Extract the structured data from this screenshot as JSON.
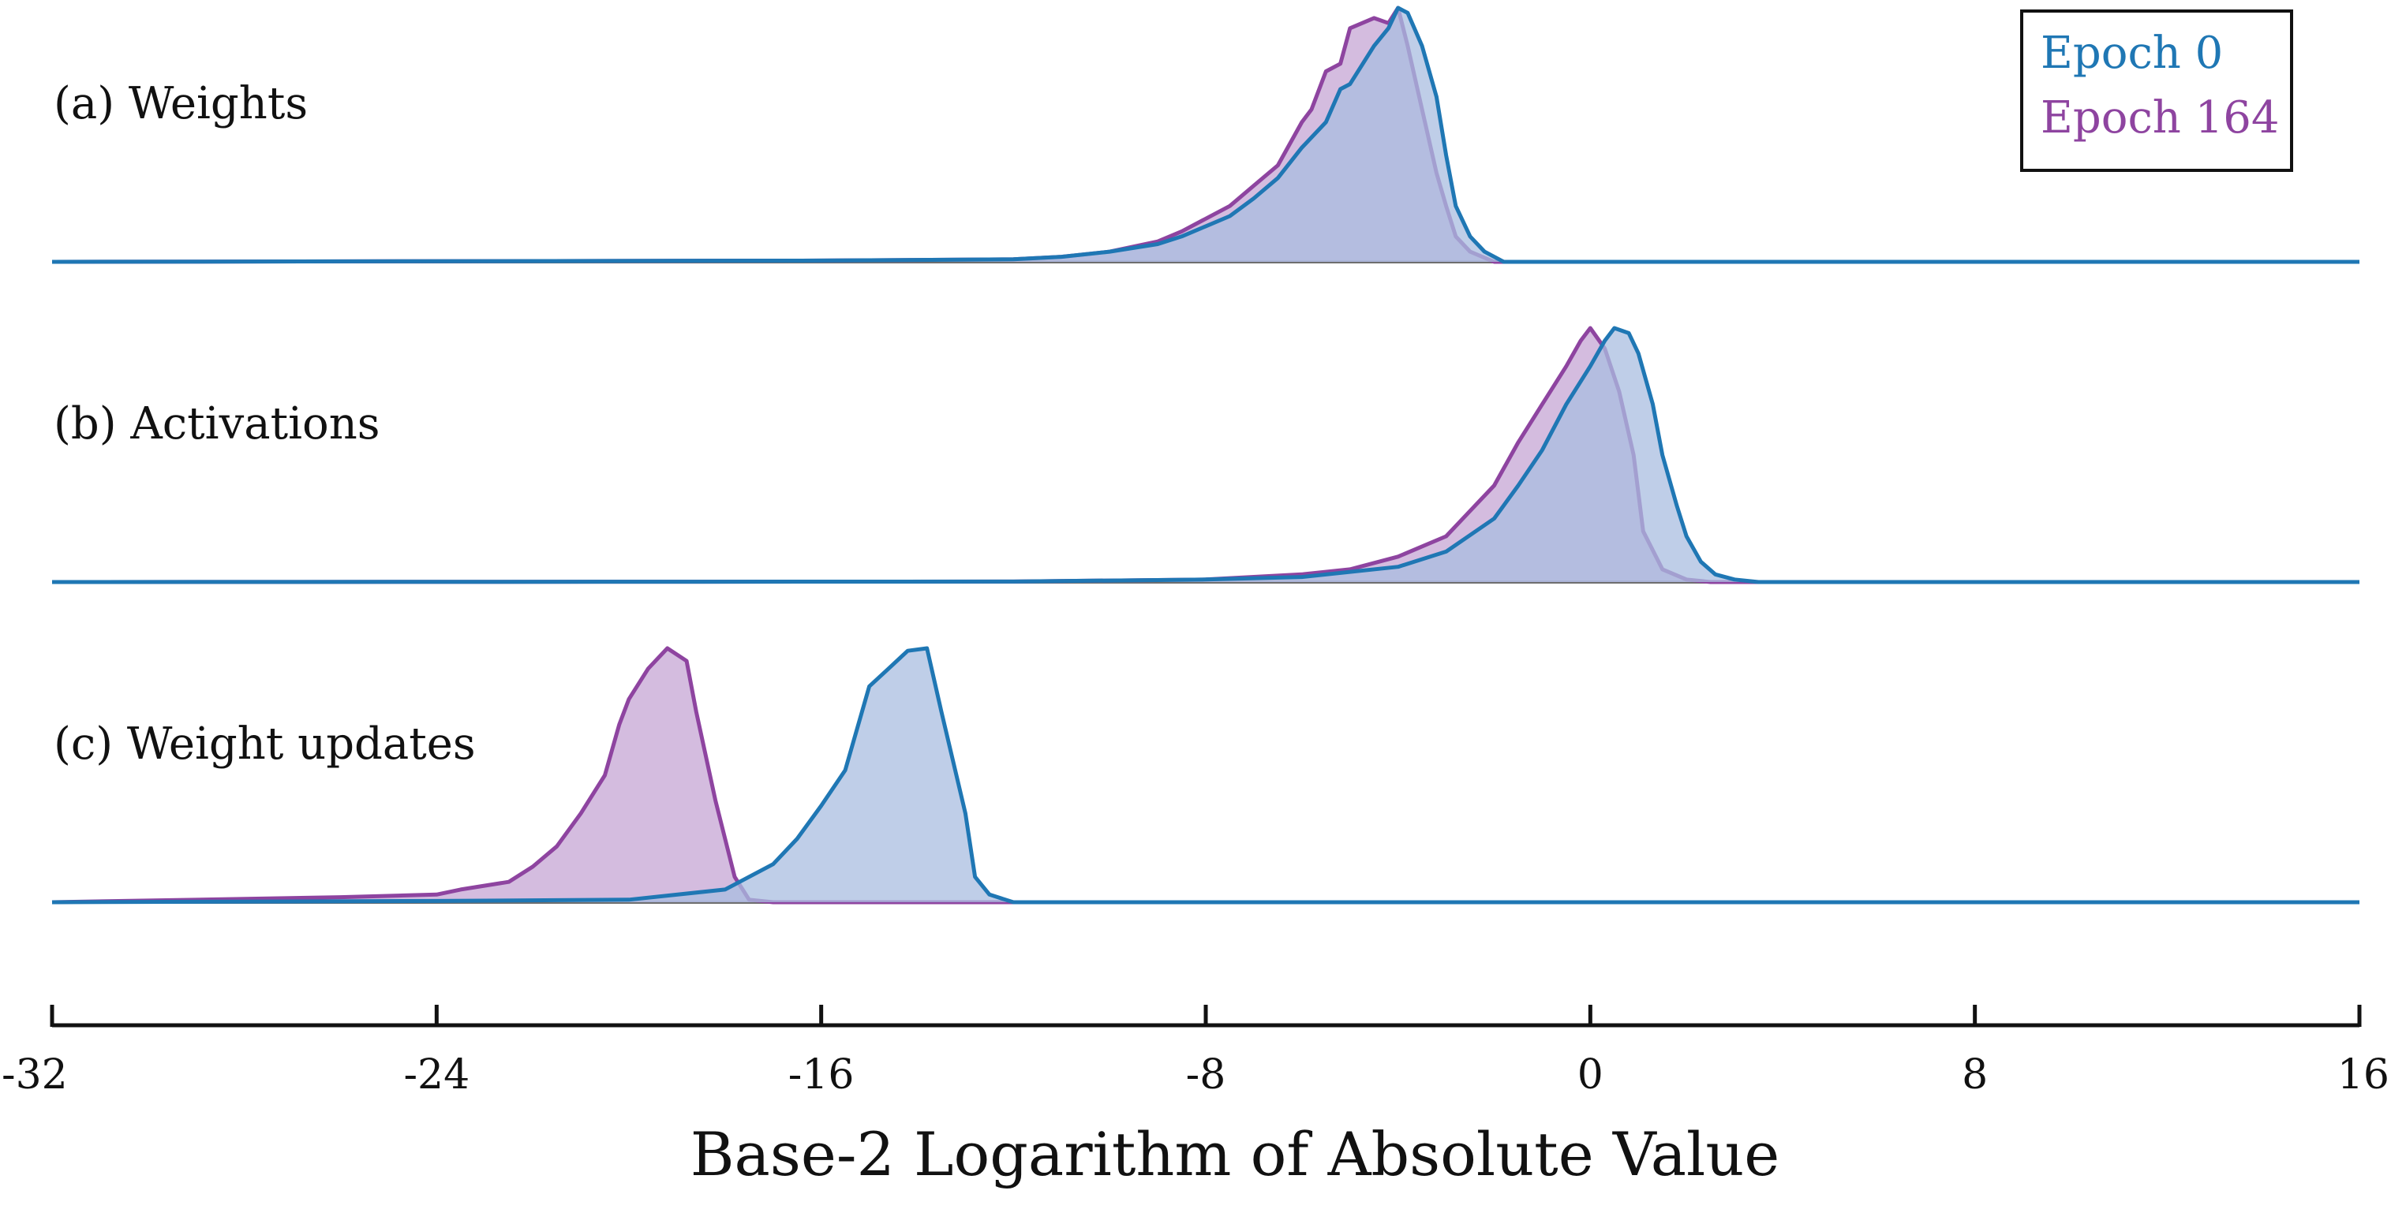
{
  "chart_data": {
    "type": "area",
    "xlabel": "Base-2 Logarithm of Absolute Value",
    "xlim": [
      -32,
      16
    ],
    "xticks": [
      -32,
      -24,
      -16,
      -8,
      0,
      8,
      16
    ],
    "xtick_labels": [
      "-32",
      "-24",
      "-16",
      "-8",
      "0",
      "8",
      "16"
    ],
    "grid": false,
    "legend": {
      "position": "top-right",
      "entries": [
        {
          "name": "Epoch 0",
          "color": "#1f77b4"
        },
        {
          "name": "Epoch 164",
          "color": "#8e44a0"
        }
      ]
    },
    "colors": {
      "epoch0_line": "#1f77b4",
      "epoch0_fill": "#a9bde0",
      "epoch164_line": "#8e44a0",
      "epoch164_fill": "#c6a5d4"
    },
    "panels": [
      {
        "label": "(a) Weights",
        "series": [
          {
            "name": "Epoch 164",
            "x": [
              -32,
              -16,
              -12,
              -11,
              -10,
              -9,
              -8.5,
              -8,
              -7.5,
              -7,
              -6.5,
              -6,
              -5.8,
              -5.5,
              -5.2,
              -5,
              -4.5,
              -4.2,
              -4,
              -3.8,
              -3.5,
              -3.2,
              -3,
              -2.8,
              -2.5,
              -2,
              16
            ],
            "y": [
              0,
              0.005,
              0.01,
              0.02,
              0.04,
              0.08,
              0.12,
              0.17,
              0.22,
              0.3,
              0.38,
              0.55,
              0.6,
              0.75,
              0.78,
              0.92,
              0.96,
              0.94,
              1.0,
              0.85,
              0.6,
              0.35,
              0.22,
              0.1,
              0.04,
              0.0,
              0
            ]
          },
          {
            "name": "Epoch 0",
            "x": [
              -32,
              -16,
              -12,
              -11,
              -10,
              -9,
              -8.5,
              -8,
              -7.5,
              -7,
              -6.5,
              -6,
              -5.5,
              -5.2,
              -5,
              -4.5,
              -4.2,
              -4,
              -3.8,
              -3.5,
              -3.2,
              -3,
              -2.8,
              -2.5,
              -2.2,
              -1.8,
              16
            ],
            "y": [
              0,
              0.005,
              0.01,
              0.02,
              0.04,
              0.07,
              0.1,
              0.14,
              0.18,
              0.25,
              0.33,
              0.45,
              0.55,
              0.68,
              0.7,
              0.85,
              0.92,
              1.0,
              0.98,
              0.85,
              0.65,
              0.42,
              0.22,
              0.1,
              0.04,
              0.0,
              0
            ]
          }
        ]
      },
      {
        "label": "(b) Activations",
        "series": [
          {
            "name": "Epoch 164",
            "x": [
              -32,
              -12,
              -8,
              -6,
              -5,
              -4,
              -3,
              -2.5,
              -2,
              -1.5,
              -1,
              -0.5,
              -0.2,
              0,
              0.3,
              0.6,
              0.9,
              1.1,
              1.5,
              2,
              2.5,
              16
            ],
            "y": [
              0,
              0.002,
              0.01,
              0.03,
              0.05,
              0.1,
              0.18,
              0.28,
              0.38,
              0.55,
              0.7,
              0.85,
              0.95,
              1.0,
              0.92,
              0.75,
              0.5,
              0.2,
              0.05,
              0.01,
              0,
              0
            ]
          },
          {
            "name": "Epoch 0",
            "x": [
              -32,
              -12,
              -8,
              -6,
              -4,
              -3,
              -2,
              -1.5,
              -1,
              -0.5,
              0,
              0.3,
              0.5,
              0.8,
              1,
              1.3,
              1.5,
              1.8,
              2,
              2.3,
              2.6,
              3,
              3.5,
              16
            ],
            "y": [
              0,
              0.002,
              0.01,
              0.02,
              0.06,
              0.12,
              0.25,
              0.38,
              0.52,
              0.7,
              0.85,
              0.95,
              1.0,
              0.98,
              0.9,
              0.7,
              0.5,
              0.3,
              0.18,
              0.08,
              0.03,
              0.01,
              0,
              0
            ]
          }
        ]
      },
      {
        "label": "(c) Weight updates",
        "series": [
          {
            "name": "Epoch 164",
            "x": [
              -32,
              -26,
              -24,
              -23.5,
              -22.5,
              -22,
              -21.5,
              -21,
              -20.5,
              -20.2,
              -20,
              -19.6,
              -19.2,
              -18.8,
              -18.6,
              -18.2,
              -17.8,
              -17.5,
              -17,
              16
            ],
            "y": [
              0,
              0.02,
              0.03,
              0.05,
              0.08,
              0.14,
              0.22,
              0.35,
              0.5,
              0.7,
              0.8,
              0.92,
              1.0,
              0.95,
              0.75,
              0.4,
              0.1,
              0.01,
              0,
              0
            ]
          },
          {
            "name": "Epoch 0",
            "x": [
              -32,
              -24,
              -20,
              -18,
              -17.5,
              -17,
              -16.5,
              -16,
              -15.5,
              -15,
              -14.6,
              -14.2,
              -13.8,
              -13.5,
              -13,
              -12.8,
              -12.5,
              -12,
              16
            ],
            "y": [
              0,
              0.005,
              0.01,
              0.05,
              0.1,
              0.15,
              0.25,
              0.38,
              0.52,
              0.85,
              0.92,
              0.99,
              1.0,
              0.75,
              0.35,
              0.1,
              0.03,
              0,
              0
            ]
          }
        ]
      }
    ]
  }
}
